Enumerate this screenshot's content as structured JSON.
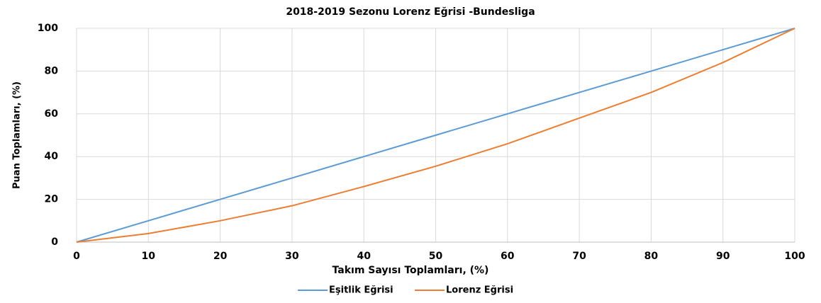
{
  "chart_data": {
    "type": "line",
    "title": "2018-2019 Sezonu Lorenz Eğrisi -Bundesliga",
    "x_label": "Takım Sayısı Toplamları, (%)",
    "y_label": "Puan Toplamları, (%)",
    "x": [
      0,
      10,
      20,
      30,
      40,
      50,
      60,
      70,
      80,
      90,
      100
    ],
    "series": [
      {
        "name": "Eşitlik Eğrisi",
        "color": "#5b9bd5",
        "values": [
          0,
          10,
          20,
          30,
          40,
          50,
          60,
          70,
          80,
          90,
          100
        ]
      },
      {
        "name": "Lorenz Eğrisi",
        "color": "#ed7d31",
        "values": [
          0,
          4,
          10,
          17,
          26,
          35.5,
          46,
          58,
          70,
          84,
          100
        ]
      }
    ],
    "xlim": [
      0,
      100
    ],
    "xticks": [
      0,
      10,
      20,
      30,
      40,
      50,
      60,
      70,
      80,
      90,
      100
    ],
    "ylim": [
      0,
      100
    ],
    "yticks": [
      0,
      20,
      40,
      60,
      80,
      100
    ],
    "grid": true,
    "legend": "bottom"
  }
}
